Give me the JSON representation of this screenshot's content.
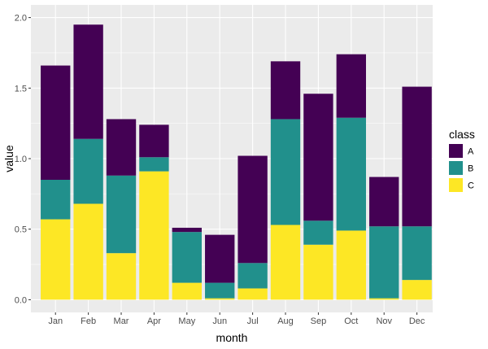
{
  "chart_data": {
    "type": "bar",
    "stacked": true,
    "title": "",
    "xlabel": "month",
    "ylabel": "value",
    "ylim": [
      -0.09,
      2.09
    ],
    "yticks": [
      0.0,
      0.5,
      1.0,
      1.5,
      2.0
    ],
    "ytick_labels": [
      "0.0",
      "0.5",
      "1.0",
      "1.5",
      "2.0"
    ],
    "categories": [
      "Jan",
      "Feb",
      "Mar",
      "Apr",
      "May",
      "Jun",
      "Jul",
      "Aug",
      "Sep",
      "Oct",
      "Nov",
      "Dec"
    ],
    "legend_title": "class",
    "legend_position": "right",
    "series": [
      {
        "name": "A",
        "color": "#440154",
        "values": [
          0.81,
          0.81,
          0.4,
          0.23,
          0.03,
          0.34,
          0.76,
          0.41,
          0.9,
          0.45,
          0.35,
          0.99
        ]
      },
      {
        "name": "B",
        "color": "#21908C",
        "values": [
          0.28,
          0.46,
          0.55,
          0.1,
          0.36,
          0.11,
          0.18,
          0.75,
          0.17,
          0.8,
          0.51,
          0.38
        ]
      },
      {
        "name": "C",
        "color": "#FDE725",
        "values": [
          0.57,
          0.68,
          0.33,
          0.91,
          0.12,
          0.01,
          0.08,
          0.53,
          0.39,
          0.49,
          0.01,
          0.14
        ]
      }
    ],
    "legend_order": [
      "A",
      "B",
      "C"
    ],
    "panel_background": "#EBEBEB",
    "grid_color": "#FFFFFF"
  }
}
